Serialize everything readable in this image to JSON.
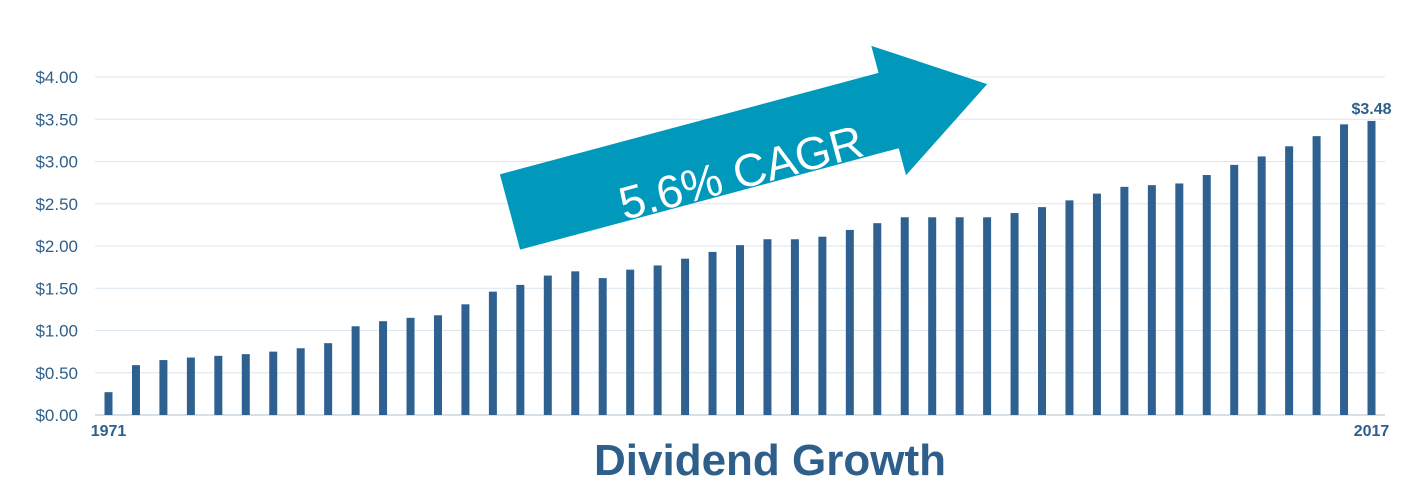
{
  "chart_data": {
    "type": "bar",
    "title": "Dividend Growth",
    "x_start_label": "1971",
    "x_end_label": "2017",
    "last_value_label": "$3.48",
    "ylim": [
      0,
      4
    ],
    "yticks": [
      {
        "value": 0,
        "label": "$0.00"
      },
      {
        "value": 0.5,
        "label": "$0.50"
      },
      {
        "value": 1.0,
        "label": "$1.00"
      },
      {
        "value": 1.5,
        "label": "$1.50"
      },
      {
        "value": 2.0,
        "label": "$2.00"
      },
      {
        "value": 2.5,
        "label": "$2.50"
      },
      {
        "value": 3.0,
        "label": "$3.00"
      },
      {
        "value": 3.5,
        "label": "$3.50"
      },
      {
        "value": 4.0,
        "label": "$4.00"
      }
    ],
    "grid": true,
    "annotation": "5.6% CAGR",
    "values": [
      0.27,
      0.59,
      0.65,
      0.68,
      0.7,
      0.72,
      0.75,
      0.79,
      0.85,
      1.05,
      1.11,
      1.15,
      1.18,
      1.31,
      1.46,
      1.54,
      1.65,
      1.7,
      1.62,
      1.72,
      1.77,
      1.85,
      1.93,
      2.01,
      2.08,
      2.08,
      2.11,
      2.19,
      2.27,
      2.34,
      2.34,
      2.34,
      2.34,
      2.39,
      2.46,
      2.54,
      2.62,
      2.7,
      2.72,
      2.74,
      2.84,
      2.96,
      3.06,
      3.18,
      3.3,
      3.44,
      3.48
    ]
  },
  "colors": {
    "bar": "#2e6190",
    "grid": "#dbe6ef",
    "axis": "#c9d6e2",
    "arrow": "#0099bb",
    "text": "#2e5f8a"
  }
}
